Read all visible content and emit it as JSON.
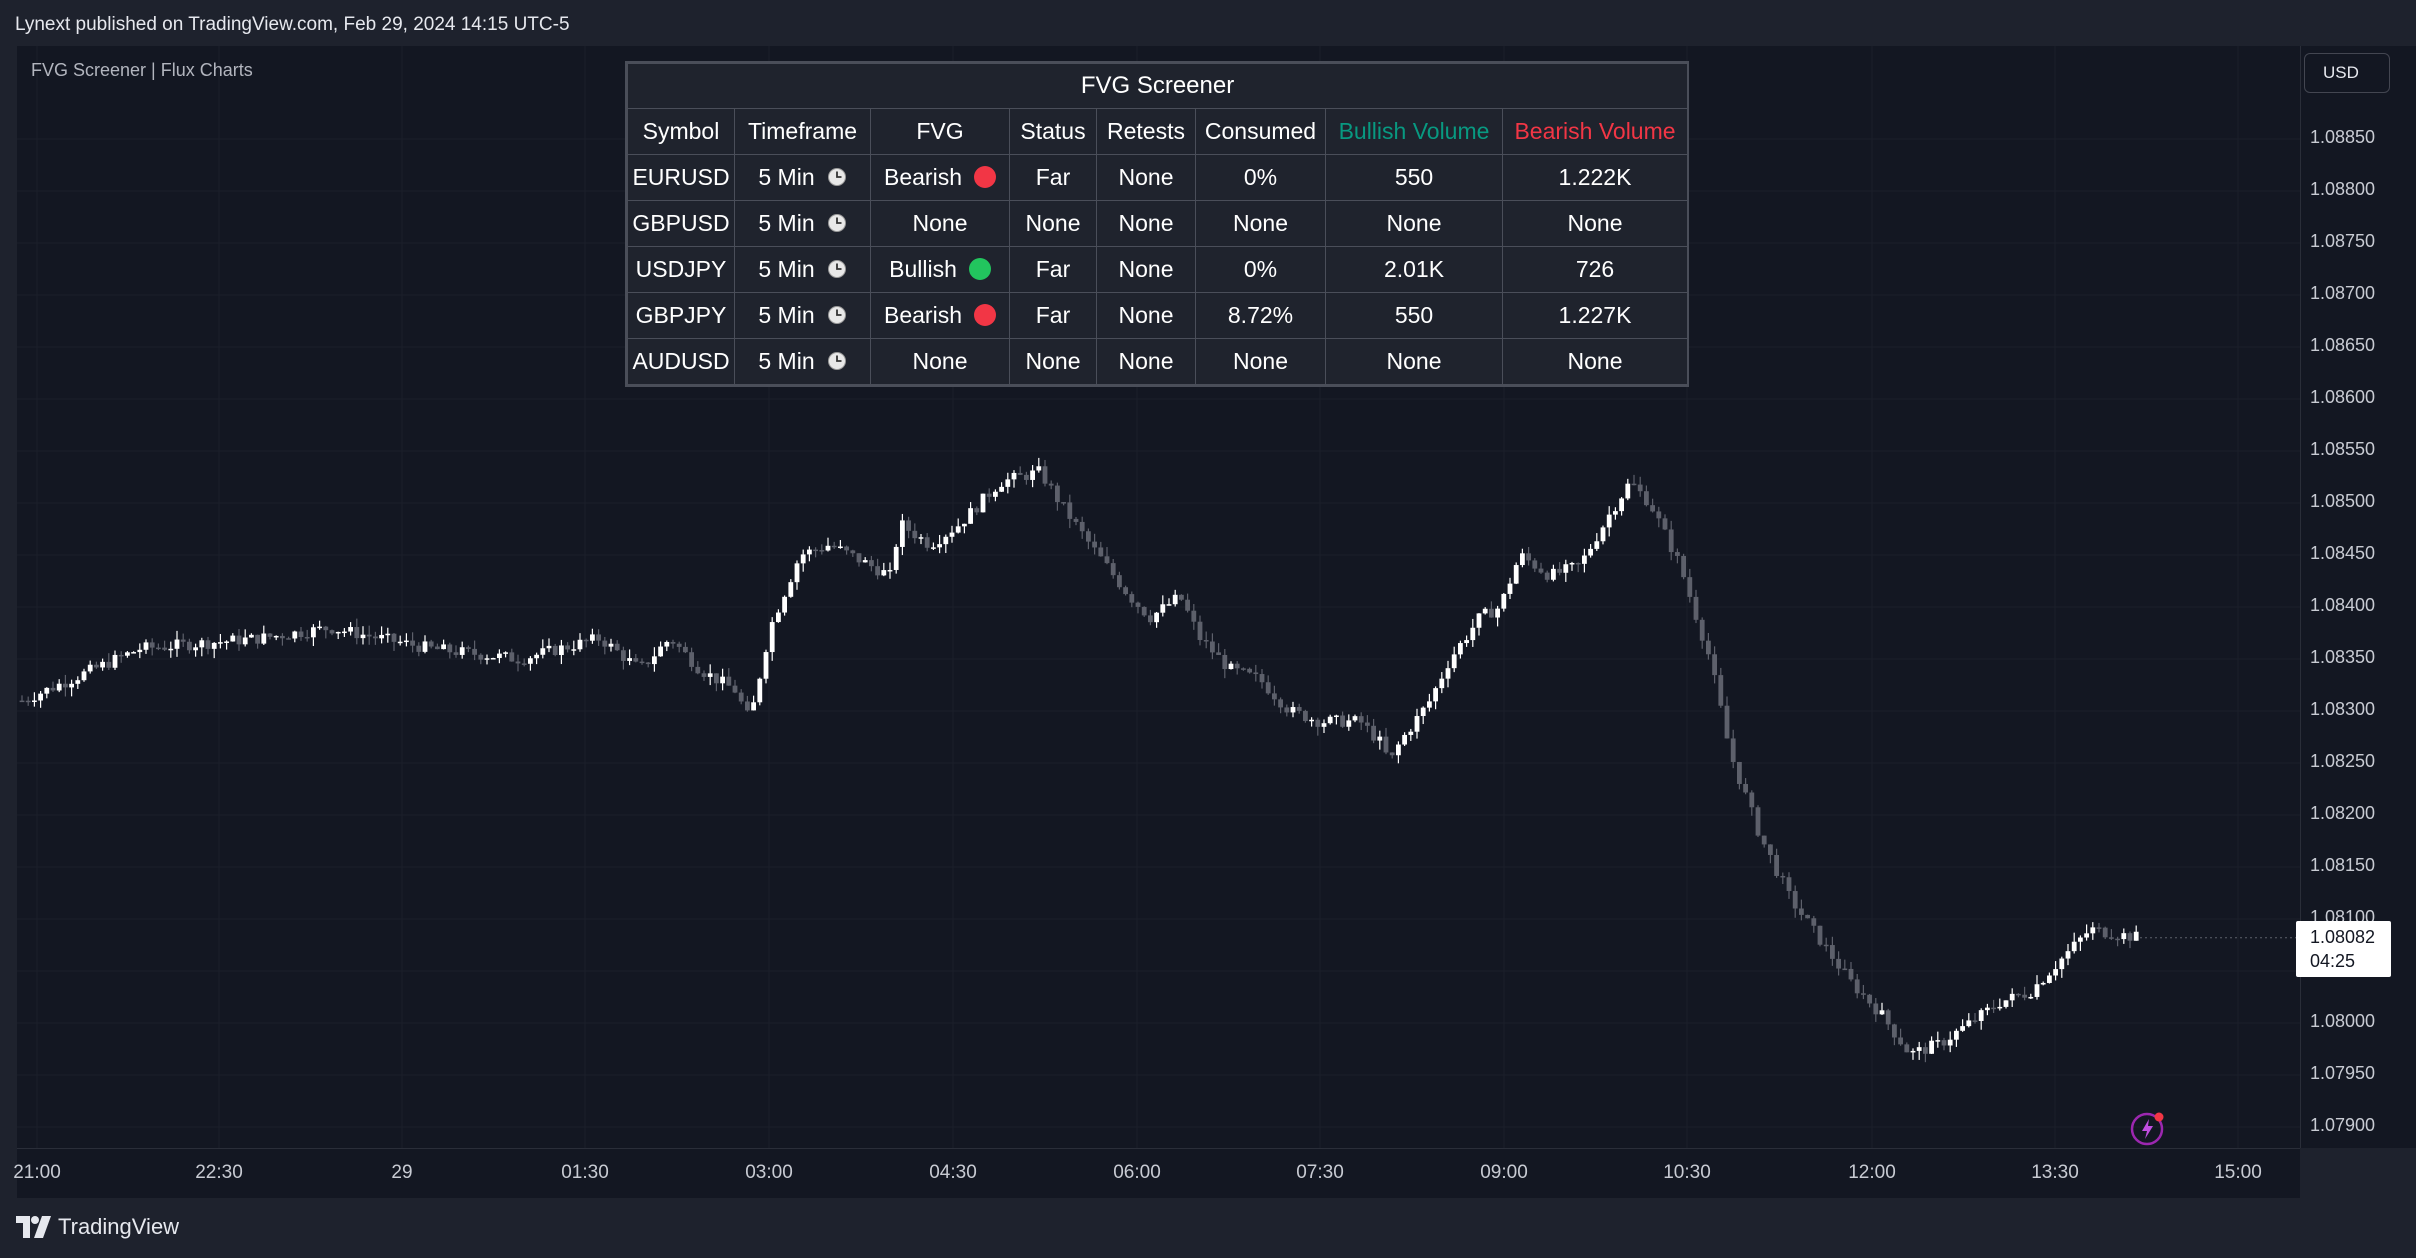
{
  "header": {
    "publisher": "Lynext published on TradingView.com, Feb 29, 2024 14:15 UTC-5"
  },
  "chart": {
    "indicator_name": "FVG Screener | Flux Charts",
    "currency": "USD",
    "last_price": "1.08082",
    "countdown": "04:25",
    "price_ticks": [
      "1.08850",
      "1.08800",
      "1.08750",
      "1.08700",
      "1.08650",
      "1.08600",
      "1.08550",
      "1.08500",
      "1.08450",
      "1.08400",
      "1.08350",
      "1.08300",
      "1.08250",
      "1.08200",
      "1.08150",
      "1.08100",
      "1.08000",
      "1.07950",
      "1.07900"
    ],
    "time_ticks": [
      "21:00",
      "22:30",
      "29",
      "01:30",
      "03:00",
      "04:30",
      "06:00",
      "07:30",
      "09:00",
      "10:30",
      "12:00",
      "13:30",
      "15:00"
    ]
  },
  "screener": {
    "title": "FVG Screener",
    "headers": [
      "Symbol",
      "Timeframe",
      "FVG",
      "Status",
      "Retests",
      "Consumed",
      "Bullish Volume",
      "Bearish Volume"
    ],
    "rows": [
      {
        "symbol": "EURUSD",
        "timeframe": "5 Min",
        "fvg": "Bearish",
        "fvg_dot": "#f23645",
        "status": "Far",
        "retests": "None",
        "consumed": "0%",
        "bull_vol": "550",
        "bear_vol": "1.222K"
      },
      {
        "symbol": "GBPUSD",
        "timeframe": "5 Min",
        "fvg": "None",
        "fvg_dot": "",
        "status": "None",
        "retests": "None",
        "consumed": "None",
        "bull_vol": "None",
        "bear_vol": "None"
      },
      {
        "symbol": "USDJPY",
        "timeframe": "5 Min",
        "fvg": "Bullish",
        "fvg_dot": "#22c55e",
        "status": "Far",
        "retests": "None",
        "consumed": "0%",
        "bull_vol": "2.01K",
        "bear_vol": "726"
      },
      {
        "symbol": "GBPJPY",
        "timeframe": "5 Min",
        "fvg": "Bearish",
        "fvg_dot": "#f23645",
        "status": "Far",
        "retests": "None",
        "consumed": "8.72%",
        "bull_vol": "550",
        "bear_vol": "1.227K"
      },
      {
        "symbol": "AUDUSD",
        "timeframe": "5 Min",
        "fvg": "None",
        "fvg_dot": "",
        "status": "None",
        "retests": "None",
        "consumed": "None",
        "bull_vol": "None",
        "bear_vol": "None"
      }
    ]
  },
  "colors": {
    "bull_header": "#089981",
    "bear_header": "#f23645",
    "bull_candle": "#ffffff",
    "bear_candle": "#5d606b",
    "bg": "#131722"
  },
  "icons": {
    "clock": "clock-icon",
    "bolt": "bolt-icon",
    "logo": "tradingview-logo-icon"
  },
  "footer": {
    "brand": "TradingView"
  },
  "chart_data": {
    "type": "candlestick",
    "key_prices": [
      {
        "time": "21:00",
        "price": 1.0831
      },
      {
        "time": "03:00",
        "price": 1.0828
      },
      {
        "time": "04:30",
        "price": 1.0847
      },
      {
        "time": "05:05",
        "price": 1.0853
      },
      {
        "time": "07:45",
        "price": 1.0824
      },
      {
        "time": "10:20",
        "price": 1.0855
      },
      {
        "time": "12:30",
        "price": 1.0796
      },
      {
        "time": "13:55",
        "price": 1.081
      },
      {
        "time": "14:10",
        "price": 1.08082
      }
    ],
    "price_range": [
      1.0788,
      1.0893
    ]
  }
}
